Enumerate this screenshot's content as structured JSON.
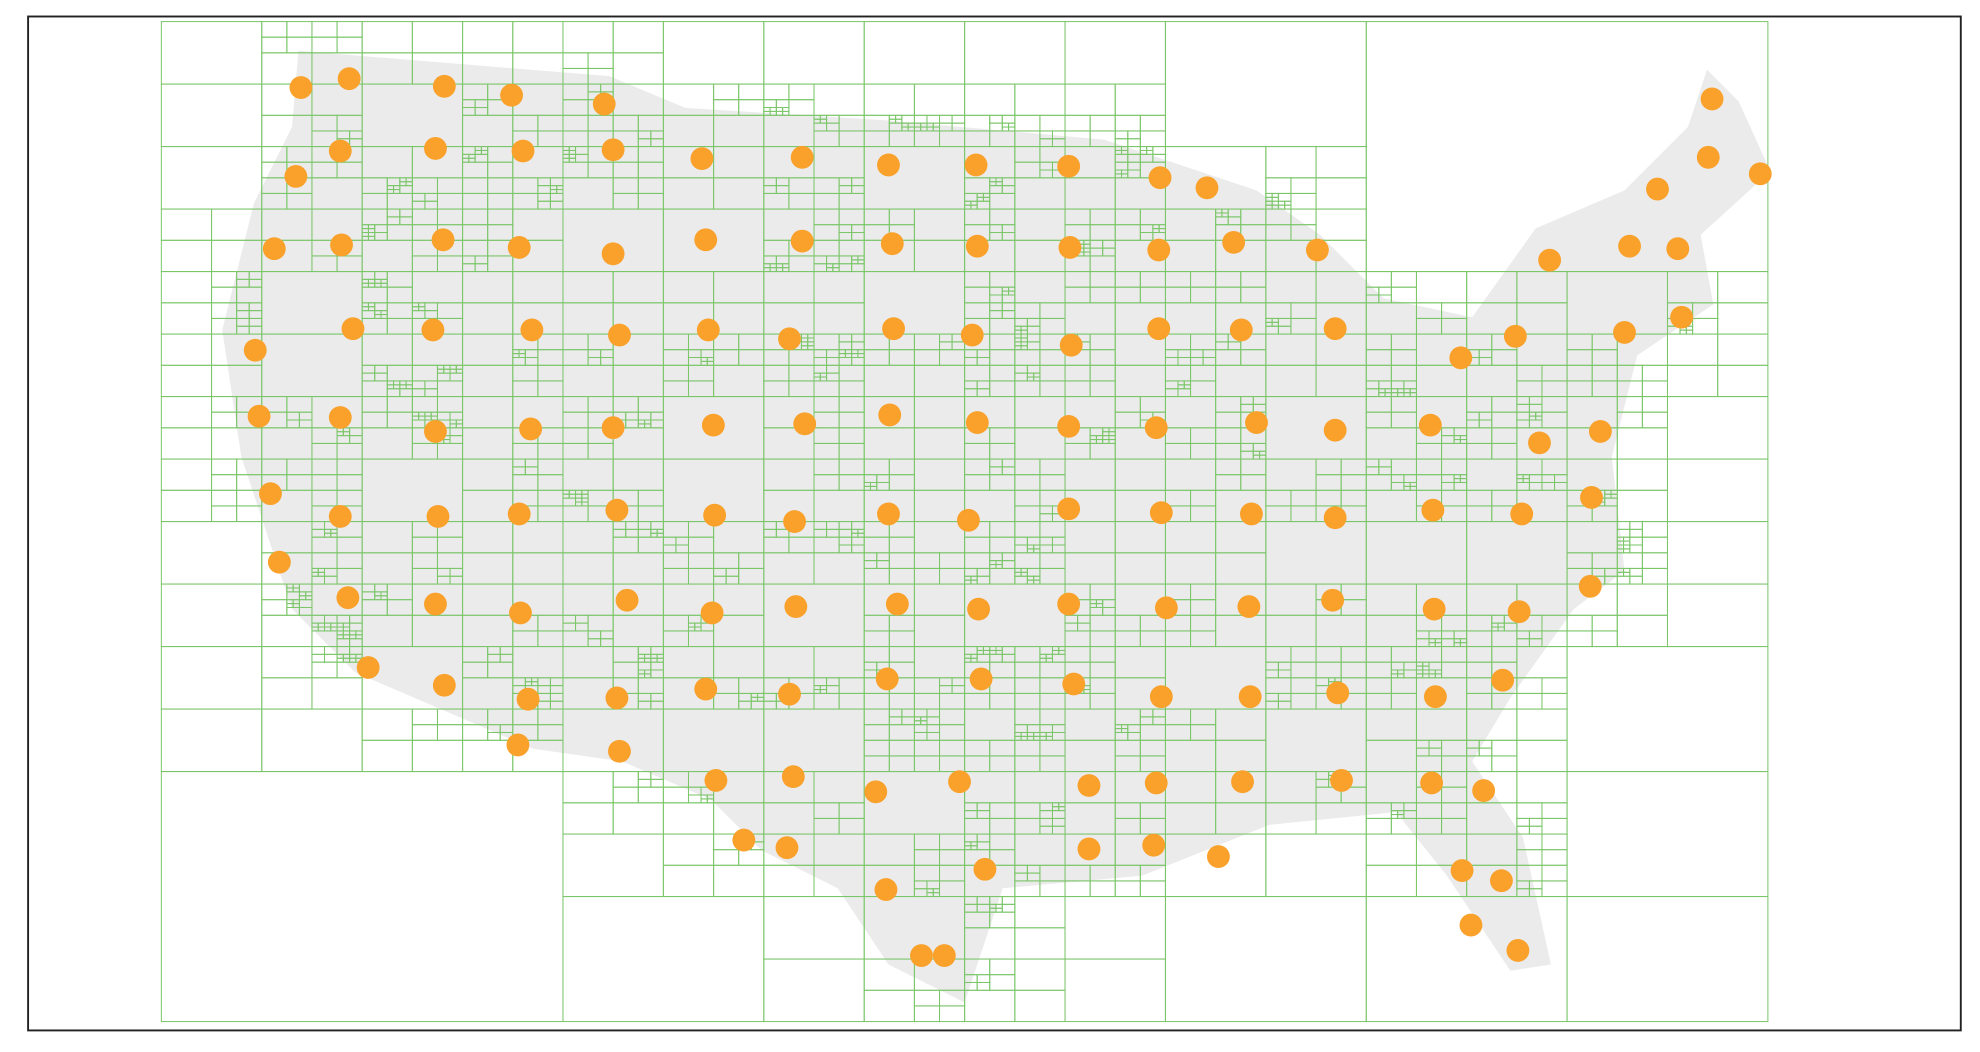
{
  "map": {
    "land_color": "#ebebeb",
    "grid_color": "#7cc66a",
    "point_color": "#f9a12b",
    "frame_color": "#222222"
  }
}
